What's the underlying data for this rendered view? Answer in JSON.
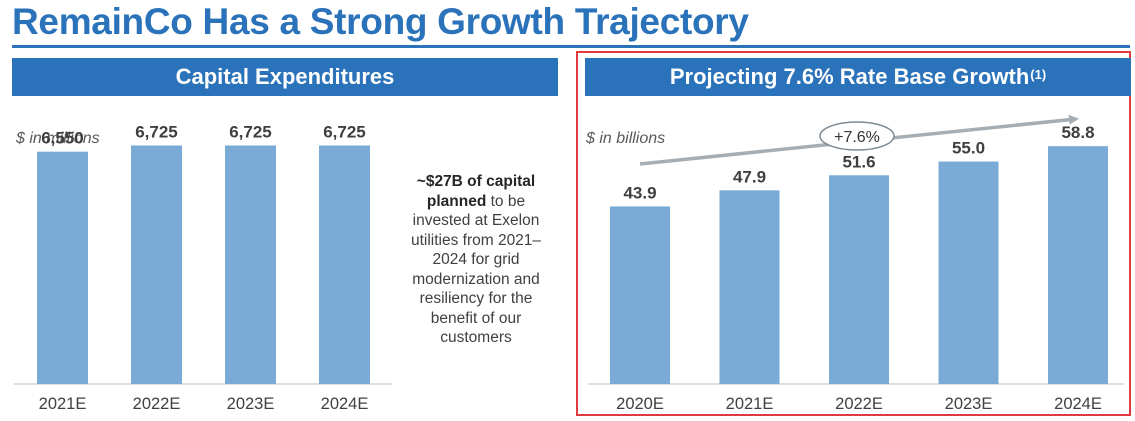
{
  "page": {
    "title": "RemainCo Has a Strong Growth Trajectory"
  },
  "left_panel": {
    "header": "Capital Expenditures",
    "unit": "$ in millions"
  },
  "callout": {
    "bold_text": "~$27B of capital planned",
    "rest_text": " to be invested at Exelon utilities from 2021–2024 for grid modernization and resiliency for the benefit of our customers"
  },
  "right_panel": {
    "header": "Projecting 7.6% Rate Base Growth",
    "footnote_marker": "(1)",
    "unit": "$ in billions",
    "growth_label": "+7.6%"
  },
  "colors": {
    "brand_blue": "#2a72b9",
    "bar_blue": "#7aaad6",
    "highlight_red": "#e0393e",
    "arrow_gray": "#a6aeb4"
  },
  "chart_data": [
    {
      "type": "bar",
      "title": "Capital Expenditures",
      "ylabel": "$ in millions",
      "categories": [
        "2021E",
        "2022E",
        "2023E",
        "2024E"
      ],
      "values": [
        6550,
        6725,
        6725,
        6725
      ],
      "value_labels": [
        "6,550",
        "6,725",
        "6,725",
        "6,725"
      ],
      "ylim": [
        0,
        7500
      ]
    },
    {
      "type": "bar",
      "title": "Projecting 7.6% Rate Base Growth",
      "ylabel": "$ in billions",
      "categories": [
        "2020E",
        "2021E",
        "2022E",
        "2023E",
        "2024E"
      ],
      "values": [
        43.9,
        47.9,
        51.6,
        55.0,
        58.8
      ],
      "value_labels": [
        "43.9",
        "47.9",
        "51.6",
        "55.0",
        "58.8"
      ],
      "ylim": [
        0,
        67
      ],
      "annotation": "+7.6%"
    }
  ]
}
